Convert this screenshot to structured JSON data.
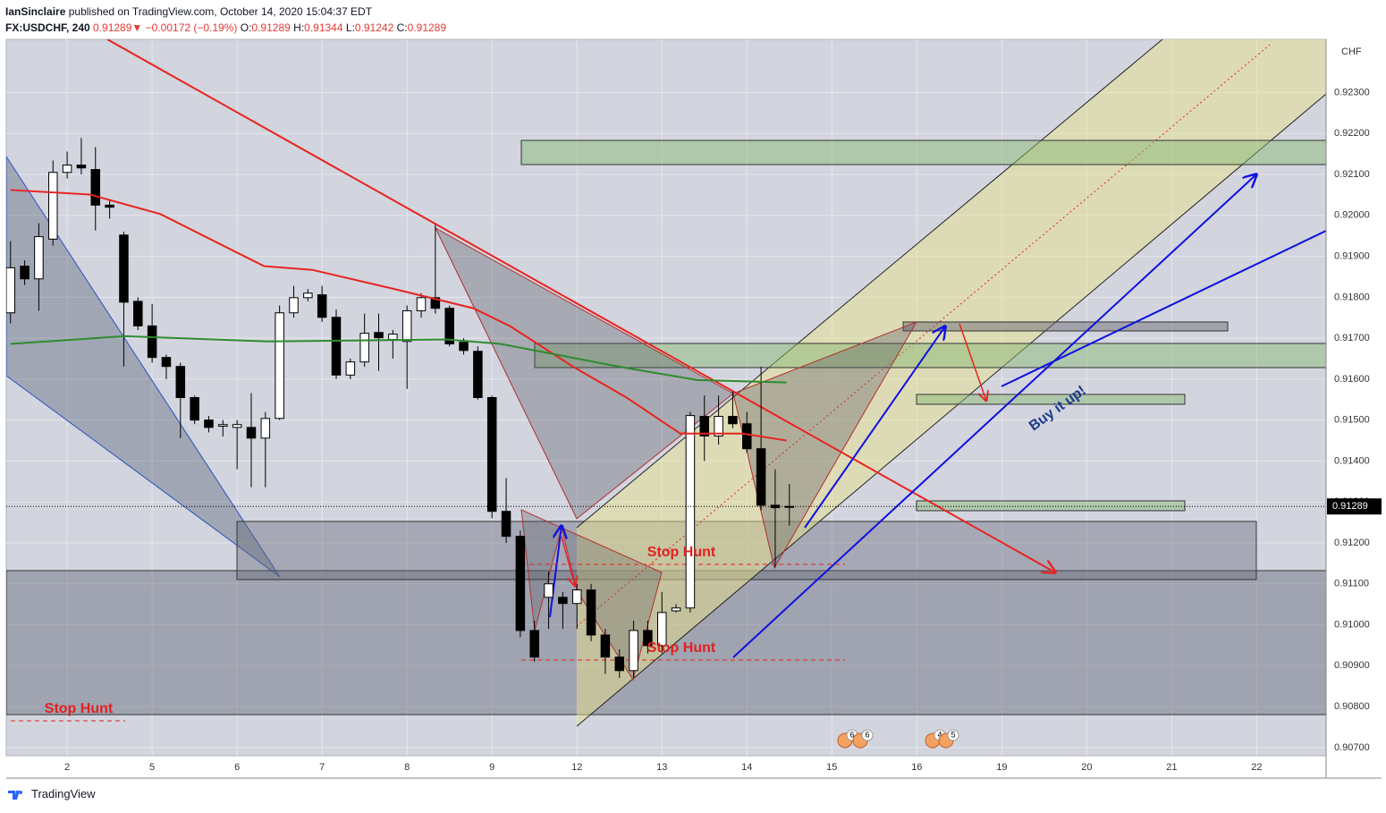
{
  "header": {
    "author": "IanSinclaire",
    "published": "published on TradingView.com, October 14, 2020 15:04:37 EDT",
    "symbol": "FX:USDCHF, 240",
    "last": 0.91289,
    "change": "−0.00172 (−0.19%)",
    "ohlc": [
      {
        "label": "O:",
        "value": 0.91289
      },
      {
        "label": "H:",
        "value": 0.91344
      },
      {
        "label": "L:",
        "value": 0.91242
      },
      {
        "label": "C:",
        "value": 0.91289
      }
    ]
  },
  "footer": "TradingView",
  "chart_data": {
    "type": "candlestick",
    "currency": "CHF",
    "up_color": "#ffffff",
    "down_color": "#000000",
    "open": [
      0.91762,
      0.91876,
      0.91845,
      0.91942,
      0.92105,
      0.92123,
      0.92112,
      0.92025,
      0.91952,
      0.9179,
      0.9173,
      0.91653,
      0.91631,
      0.91555,
      0.915,
      0.91485,
      0.91482,
      0.91482,
      0.91456,
      0.91504,
      0.91762,
      0.91799,
      0.91806,
      0.91751,
      0.9161,
      0.91642,
      0.91714,
      0.91697,
      0.91692,
      0.91767,
      0.91799,
      0.91773,
      0.9169,
      0.91668,
      0.91555,
      0.91277,
      0.91216,
      0.90986,
      0.91067,
      0.91067,
      0.91052,
      0.91085,
      0.90975,
      0.90921,
      0.90888,
      0.90986,
      0.90949,
      0.91034,
      0.91041,
      0.91509,
      0.91461,
      0.91509,
      0.91491,
      0.9143,
      0.91292,
      0.91289
    ],
    "high": [
      0.91937,
      0.9189,
      0.91981,
      0.92134,
      0.92156,
      0.92189,
      0.92167,
      0.9204,
      0.9196,
      0.918,
      0.91784,
      0.9166,
      0.9164,
      0.9156,
      0.9151,
      0.915,
      0.915,
      0.91566,
      0.9152,
      0.9178,
      0.91828,
      0.9182,
      0.91828,
      0.9177,
      0.9165,
      0.9176,
      0.9176,
      0.9172,
      0.9178,
      0.9181,
      0.91977,
      0.9178,
      0.917,
      0.9168,
      0.9156,
      0.91358,
      0.9123,
      0.9101,
      0.9113,
      0.9108,
      0.911,
      0.911,
      0.9099,
      0.9094,
      0.9101,
      0.9101,
      0.9108,
      0.9105,
      0.9152,
      0.9156,
      0.9156,
      0.9157,
      0.9152,
      0.9163,
      0.9138,
      0.91344
    ],
    "low": [
      0.91736,
      0.9183,
      0.91767,
      0.91926,
      0.9209,
      0.921,
      0.91963,
      0.91992,
      0.91631,
      0.9172,
      0.9164,
      0.916,
      0.91456,
      0.9149,
      0.9147,
      0.9146,
      0.9138,
      0.91336,
      0.91336,
      0.915,
      0.9175,
      0.9179,
      0.9174,
      0.916,
      0.916,
      0.9163,
      0.9162,
      0.9165,
      0.91576,
      0.9175,
      0.9176,
      0.9168,
      0.9166,
      0.9155,
      0.9126,
      0.912,
      0.9097,
      0.9091,
      0.9099,
      0.9099,
      0.9099,
      0.9096,
      0.9088,
      0.9087,
      0.9087,
      0.9093,
      0.9093,
      0.9103,
      0.9103,
      0.914,
      0.9144,
      0.9148,
      0.9142,
      0.9128,
      0.9114,
      0.91242
    ],
    "close": [
      0.91872,
      0.91845,
      0.91948,
      0.92105,
      0.92123,
      0.92116,
      0.92025,
      0.9202,
      0.91788,
      0.9173,
      0.91653,
      0.91631,
      0.91555,
      0.915,
      0.91482,
      0.91489,
      0.91489,
      0.91456,
      0.91504,
      0.91762,
      0.91799,
      0.9181,
      0.91751,
      0.9161,
      0.91642,
      0.91712,
      0.91701,
      0.9171,
      0.91767,
      0.91799,
      0.91773,
      0.91686,
      0.9167,
      0.91555,
      0.91277,
      0.91216,
      0.90986,
      0.90921,
      0.911,
      0.91052,
      0.91085,
      0.90975,
      0.90921,
      0.90888,
      0.90986,
      0.90949,
      0.9103,
      0.91041,
      0.91511,
      0.91461,
      0.91509,
      0.91491,
      0.9143,
      0.91292,
      0.91286,
      0.91289
    ],
    "moving_averages": [
      {
        "color": "#e8231f",
        "x": [
          0,
          5.6,
          10.6,
          17.9,
          21.3,
          27,
          32.7,
          35.3,
          39.7,
          43.5,
          47.3,
          51.7,
          54.8
        ],
        "values": [
          0.92062,
          0.92051,
          0.92003,
          0.91876,
          0.91867,
          0.91821,
          0.91773,
          0.91729,
          0.91631,
          0.91555,
          0.91467,
          0.91467,
          0.9145
        ]
      },
      {
        "color": "#2e8b2e",
        "x": [
          0,
          8.1,
          18.2,
          30.8,
          34.6,
          43.5,
          48.5,
          54.8
        ],
        "values": [
          0.91686,
          0.91705,
          0.91692,
          0.91697,
          0.91686,
          0.91627,
          0.91598,
          0.91592
        ]
      }
    ],
    "xlim": [
      -0.3,
      92.9
    ],
    "ylim": [
      0.9068,
      0.9243
    ],
    "xticks": [
      {
        "value": 4,
        "label": "2"
      },
      {
        "value": 10,
        "label": "5"
      },
      {
        "value": 16,
        "label": "6"
      },
      {
        "value": 22,
        "label": "7"
      },
      {
        "value": 28,
        "label": "8"
      },
      {
        "value": 34,
        "label": "9"
      },
      {
        "value": 40,
        "label": "12"
      },
      {
        "value": 46,
        "label": "13"
      },
      {
        "value": 52,
        "label": "14"
      },
      {
        "value": 58,
        "label": "15"
      },
      {
        "value": 64,
        "label": "16"
      },
      {
        "value": 70,
        "label": "19"
      },
      {
        "value": 76,
        "label": "20"
      },
      {
        "value": 82,
        "label": "21"
      },
      {
        "value": 88,
        "label": "22"
      }
    ],
    "yticks": [
      {
        "value": 0.907,
        "label": "0.90700"
      },
      {
        "value": 0.908,
        "label": "0.90800"
      },
      {
        "value": 0.909,
        "label": "0.90900"
      },
      {
        "value": 0.91,
        "label": "0.91000"
      },
      {
        "value": 0.911,
        "label": "0.91100"
      },
      {
        "value": 0.912,
        "label": "0.91200"
      },
      {
        "value": 0.913,
        "label": "0.91300"
      },
      {
        "value": 0.914,
        "label": "0.91400"
      },
      {
        "value": 0.915,
        "label": "0.91500"
      },
      {
        "value": 0.916,
        "label": "0.91600"
      },
      {
        "value": 0.917,
        "label": "0.91700"
      },
      {
        "value": 0.918,
        "label": "0.91800"
      },
      {
        "value": 0.919,
        "label": "0.91900"
      },
      {
        "value": 0.92,
        "label": "0.92000"
      },
      {
        "value": 0.921,
        "label": "0.92100"
      },
      {
        "value": 0.922,
        "label": "0.92200"
      },
      {
        "value": 0.923,
        "label": "0.92300"
      }
    ],
    "grid": true,
    "annotations": [
      "Stop Hunt",
      "Stop Hunt",
      "Stop Hunt",
      "Buy it up!"
    ],
    "events": [
      6,
      6,
      4,
      5
    ]
  }
}
